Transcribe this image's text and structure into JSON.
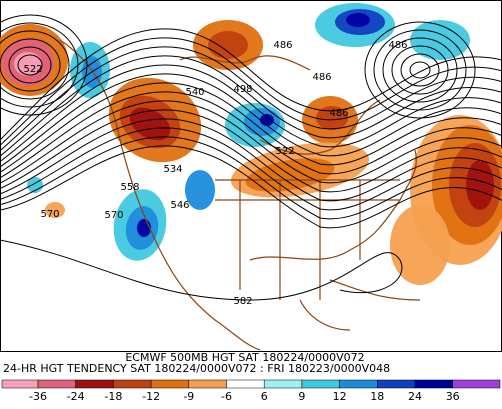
{
  "map": {
    "contour_labels": [
      "522",
      "486",
      "498",
      "540",
      "534",
      "522",
      "558",
      "546",
      "570",
      "570",
      "582",
      "486",
      "486",
      "486"
    ]
  },
  "caption": {
    "line1": "ECMWF 500MB HGT SAT 180224/0000V072",
    "line2": "24-HR HGT TENDENCY SAT 180224/0000V072 : FRI 180223/0000V048"
  },
  "legend": {
    "ticks": [
      "-36",
      "-24",
      "-18",
      "-12",
      "-9",
      "-6",
      "6",
      "9",
      "12",
      "18",
      "24",
      "36"
    ],
    "colors": [
      "#f7a0b8",
      "#e0607a",
      "#a01010",
      "#c04010",
      "#e07010",
      "#f5a050",
      "#ffffff",
      "#a0f0f0",
      "#40c8e0",
      "#1e8cdc",
      "#1040c0",
      "#0000a0",
      "#a040e0"
    ]
  }
}
